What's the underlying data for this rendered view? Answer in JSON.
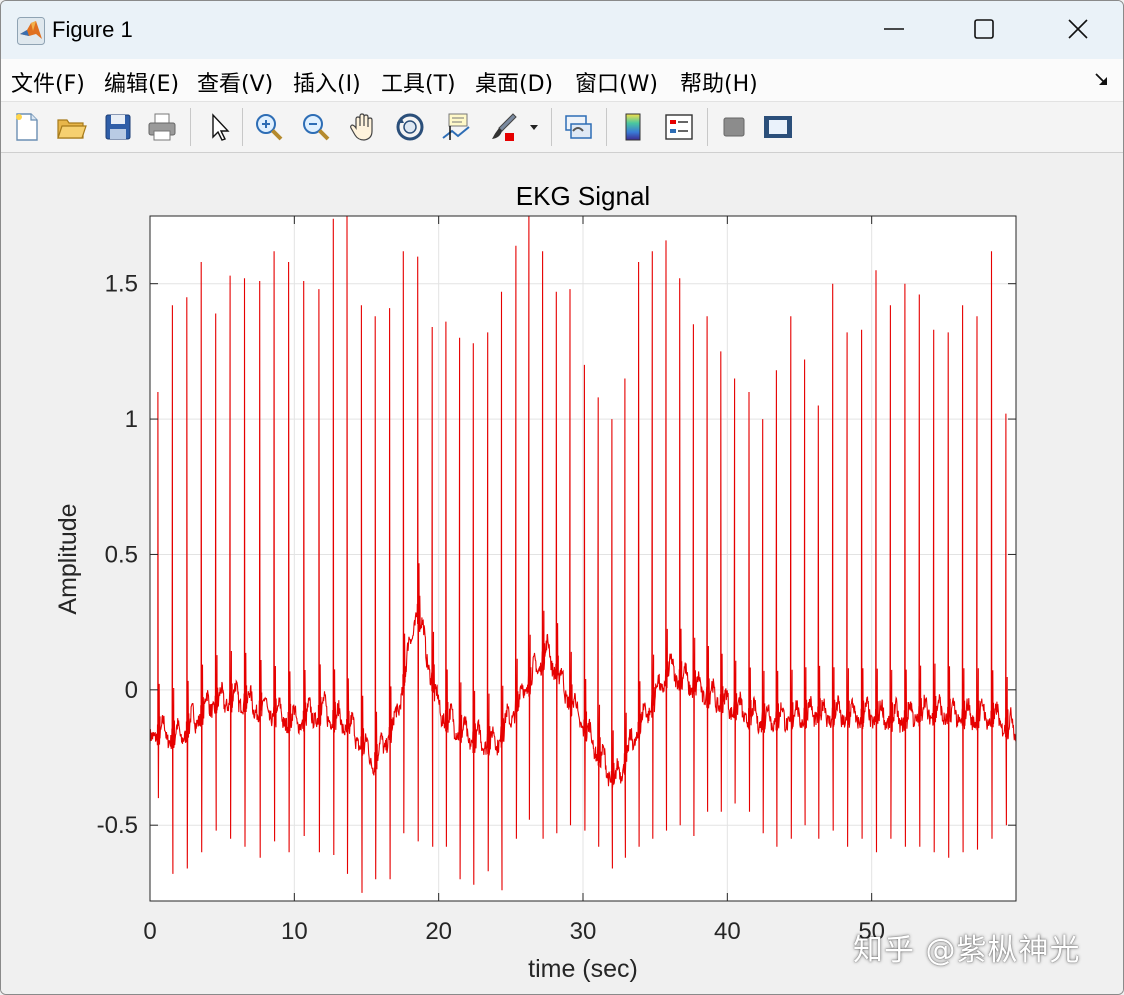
{
  "window": {
    "title": "Figure 1",
    "colors": {
      "titlebar": "#eaf2f8",
      "menubar": "#fbfbfb",
      "toolbar": "#f4f4f4",
      "figure_bg": "#f0f0f0"
    }
  },
  "menu": {
    "items": [
      "文件(F)",
      "编辑(E)",
      "查看(V)",
      "插入(I)",
      "工具(T)",
      "桌面(D)",
      "窗口(W)",
      "帮助(H)"
    ]
  },
  "toolbar": {
    "buttons": [
      "new-figure-icon",
      "open-file-icon",
      "save-icon",
      "print-icon",
      "pointer-icon",
      "zoom-in-icon",
      "zoom-out-icon",
      "pan-hand-icon",
      "rotate-3d-icon",
      "data-cursor-icon",
      "brush-icon",
      "link-plot-icon",
      "colorbar-icon",
      "legend-icon",
      "hide-plot-tools-icon",
      "show-plot-tools-icon"
    ]
  },
  "chart_data": {
    "type": "line",
    "title": "EKG Signal",
    "xlabel": "time (sec)",
    "ylabel": "Amplitude",
    "xlim": [
      0,
      60
    ],
    "ylim": [
      -0.78,
      1.75
    ],
    "xticks": [
      0,
      10,
      20,
      30,
      40,
      50
    ],
    "xtick_labels": [
      "0",
      "10",
      "20",
      "30",
      "40",
      "50"
    ],
    "yticks": [
      -0.5,
      0,
      0.5,
      1,
      1.5
    ],
    "ytick_labels": [
      "-0.5",
      "0",
      "0.5",
      "1",
      "1.5"
    ],
    "grid": true,
    "line_color": "#e60000",
    "baseline": {
      "t": [
        0,
        2,
        4,
        6,
        8,
        10,
        12,
        14,
        15.5,
        17,
        18.5,
        20,
        22,
        24,
        26,
        27.5,
        29,
        30.5,
        32.2,
        34,
        36,
        38,
        40,
        42,
        44,
        46,
        48,
        50,
        52,
        54,
        56,
        58,
        60
      ],
      "v": [
        -0.17,
        -0.2,
        -0.08,
        -0.05,
        -0.1,
        -0.14,
        -0.1,
        -0.17,
        -0.29,
        -0.15,
        0.28,
        -0.1,
        -0.2,
        -0.22,
        -0.02,
        0.12,
        -0.05,
        -0.2,
        -0.37,
        -0.15,
        0.05,
        -0.02,
        -0.08,
        -0.13,
        -0.13,
        -0.11,
        -0.12,
        -0.12,
        -0.13,
        -0.1,
        -0.12,
        -0.12,
        -0.17
      ]
    },
    "beats": {
      "t": [
        0.55,
        1.55,
        2.55,
        3.55,
        4.55,
        5.55,
        6.55,
        7.6,
        8.6,
        9.6,
        10.65,
        11.7,
        12.7,
        13.65,
        14.65,
        15.6,
        16.6,
        17.55,
        18.55,
        19.55,
        20.5,
        21.45,
        22.4,
        23.4,
        24.35,
        25.35,
        26.25,
        27.2,
        28.15,
        29.1,
        30.1,
        31.05,
        32.0,
        32.9,
        33.85,
        34.8,
        35.75,
        36.7,
        37.65,
        38.6,
        39.55,
        40.5,
        41.5,
        42.45,
        43.4,
        44.4,
        45.35,
        46.3,
        47.3,
        48.3,
        49.3,
        50.3,
        51.3,
        52.3,
        53.3,
        54.3,
        55.3,
        56.3,
        57.3,
        58.3,
        59.3
      ],
      "peak": [
        1.1,
        1.42,
        1.45,
        1.58,
        1.39,
        1.53,
        1.52,
        1.51,
        1.62,
        1.58,
        1.51,
        1.48,
        1.74,
        1.75,
        1.42,
        1.38,
        1.41,
        1.62,
        1.6,
        1.34,
        1.36,
        1.3,
        1.28,
        1.32,
        1.47,
        1.64,
        1.75,
        1.62,
        1.47,
        1.48,
        1.2,
        1.08,
        1.0,
        1.15,
        1.58,
        1.62,
        1.66,
        1.52,
        1.35,
        1.38,
        1.25,
        1.15,
        1.1,
        1.0,
        1.18,
        1.38,
        1.22,
        1.05,
        1.5,
        1.32,
        1.33,
        1.55,
        1.42,
        1.5,
        1.46,
        1.33,
        1.32,
        1.42,
        1.38,
        1.62,
        1.02
      ],
      "trough": [
        -0.4,
        -0.68,
        -0.66,
        -0.6,
        -0.52,
        -0.55,
        -0.58,
        -0.62,
        -0.56,
        -0.6,
        -0.54,
        -0.6,
        -0.61,
        -0.68,
        -0.75,
        -0.7,
        -0.7,
        -0.53,
        -0.56,
        -0.58,
        -0.58,
        -0.7,
        -0.72,
        -0.67,
        -0.74,
        -0.55,
        -0.48,
        -0.55,
        -0.53,
        -0.5,
        -0.52,
        -0.58,
        -0.66,
        -0.62,
        -0.58,
        -0.55,
        -0.52,
        -0.5,
        -0.54,
        -0.45,
        -0.45,
        -0.42,
        -0.45,
        -0.53,
        -0.58,
        -0.55,
        -0.5,
        -0.55,
        -0.52,
        -0.58,
        -0.55,
        -0.6,
        -0.55,
        -0.58,
        -0.58,
        -0.6,
        -0.62,
        -0.6,
        -0.59,
        -0.55,
        -0.5
      ]
    }
  },
  "watermark": "知乎 @紫枞神光"
}
